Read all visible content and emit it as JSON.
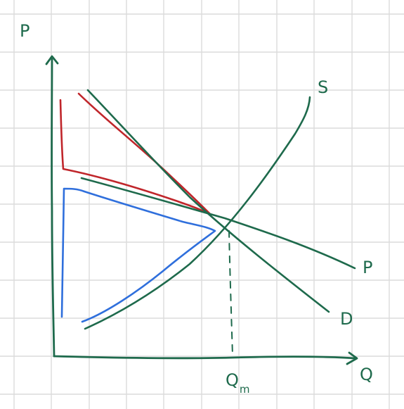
{
  "labels": {
    "p_axis": "P",
    "q_axis": "Q",
    "supply": "S",
    "demand": "D",
    "price_line": "P",
    "qm_main": "Q",
    "qm_sub": "m"
  },
  "colors": {
    "background": "#ffffff",
    "grid": "#dcdcdc",
    "ink_green": "#1e6a4c",
    "ink_red": "#c0262b",
    "ink_blue": "#2f6fdc"
  }
}
